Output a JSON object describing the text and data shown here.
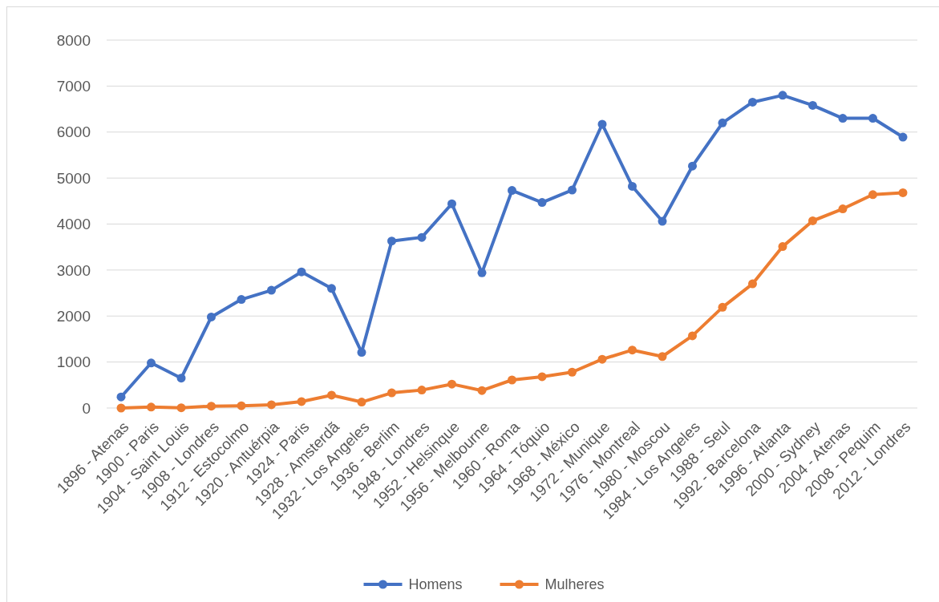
{
  "chart_data": {
    "type": "line",
    "categories": [
      "1896 - Atenas",
      "1900 - Paris",
      "1904 - Saint Louis",
      "1908 - Londres",
      "1912 - Estocolmo",
      "1920 - Antuérpia",
      "1924 - Paris",
      "1928 - Amsterdã",
      "1932 - Los Angeles",
      "1936 - Berlim",
      "1948 - Londres",
      "1952 - Helsinque",
      "1956 - Melbourne",
      "1960 - Roma",
      "1964 - Tóquio",
      "1968 - México",
      "1972 - Munique",
      "1976 - Montreal",
      "1980 - Moscou",
      "1984 - Los Angeles",
      "1988 - Seul",
      "1992 - Barcelona",
      "1996 - Atlanta",
      "2000 - Sydney",
      "2004 - Atenas",
      "2008 - Pequim",
      "2012 - Londres"
    ],
    "series": [
      {
        "name": "Homens",
        "color": "#4472c4",
        "values": [
          240,
          980,
          650,
          1980,
          2360,
          2560,
          2960,
          2600,
          1210,
          3630,
          3710,
          4440,
          2940,
          4730,
          4470,
          4740,
          6170,
          4820,
          4060,
          5260,
          6200,
          6650,
          6800,
          6580,
          6300,
          6300,
          5890
        ]
      },
      {
        "name": "Mulheres",
        "color": "#ed7d31",
        "values": [
          0,
          20,
          6,
          40,
          50,
          70,
          140,
          280,
          130,
          330,
          390,
          520,
          380,
          610,
          680,
          780,
          1060,
          1260,
          1120,
          1570,
          2190,
          2700,
          3510,
          4070,
          4330,
          4640,
          4680
        ]
      }
    ],
    "ylim": [
      0,
      8000
    ],
    "yticks": [
      0,
      1000,
      2000,
      3000,
      4000,
      5000,
      6000,
      7000,
      8000
    ],
    "grid": "y",
    "legend": "bottom",
    "marker": "circle",
    "line_style": "solid"
  }
}
